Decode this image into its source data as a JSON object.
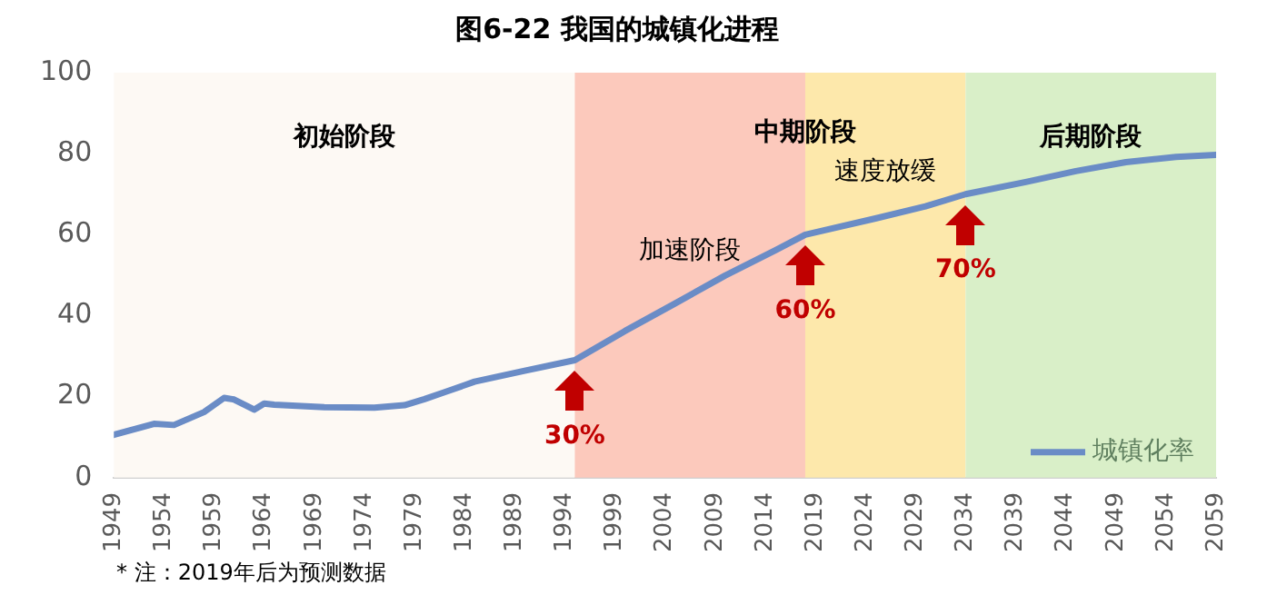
{
  "chart_data": {
    "type": "line",
    "title": "图6-22 我国的城镇化进程",
    "x": [
      1949,
      1953,
      1955,
      1958,
      1960,
      1961,
      1963,
      1964,
      1965,
      1970,
      1975,
      1978,
      1980,
      1982,
      1985,
      1990,
      1995,
      2000,
      2005,
      2010,
      2015,
      2018,
      2025,
      2030,
      2034,
      2040,
      2045,
      2050,
      2055,
      2059
    ],
    "series": [
      {
        "name": "城镇化率",
        "color": "#6a8cc6",
        "values": [
          10.6,
          13.3,
          13.0,
          16.2,
          19.7,
          19.3,
          16.8,
          18.3,
          18.0,
          17.4,
          17.3,
          17.9,
          19.4,
          21.1,
          23.7,
          26.4,
          29,
          36.2,
          43.0,
          49.9,
          56.1,
          60,
          64,
          67,
          70,
          73,
          75.7,
          77.9,
          79.2,
          79.7
        ]
      }
    ],
    "xlim": [
      1949,
      2059
    ],
    "xticks": [
      1949,
      1954,
      1959,
      1964,
      1969,
      1974,
      1979,
      1984,
      1989,
      1994,
      1999,
      2004,
      2009,
      2014,
      2019,
      2024,
      2029,
      2034,
      2039,
      2044,
      2049,
      2054,
      2059
    ],
    "ylim": [
      0,
      100
    ],
    "yticks": [
      0,
      20,
      40,
      60,
      80,
      100
    ],
    "grid": false,
    "legend": "bottom right",
    "marker": "none",
    "line_style": "solid",
    "bands": [
      {
        "axis": "x",
        "from": 1949,
        "to": 1995,
        "color": "#fdf9f4",
        "label": "初始阶段"
      },
      {
        "axis": "x",
        "from": 1995,
        "to": 2018,
        "color": "#fcc9bc",
        "label": "加速阶段"
      },
      {
        "axis": "x",
        "from": 2018,
        "to": 2034,
        "color": "#fde8ab",
        "label": "速度放缓"
      },
      {
        "axis": "x",
        "from": 2034,
        "to": 2059,
        "color": "#d9efc8",
        "label": "后期阶段"
      }
    ],
    "annotations": [
      {
        "text": "中期阶段",
        "x": 2018,
        "y": 85
      },
      {
        "text": "30%",
        "x": 1995,
        "y": 29
      },
      {
        "text": "60%",
        "x": 2018,
        "y": 60
      },
      {
        "text": "70%",
        "x": 2034,
        "y": 70
      },
      "* 注：2019年后为预测数据"
    ]
  }
}
